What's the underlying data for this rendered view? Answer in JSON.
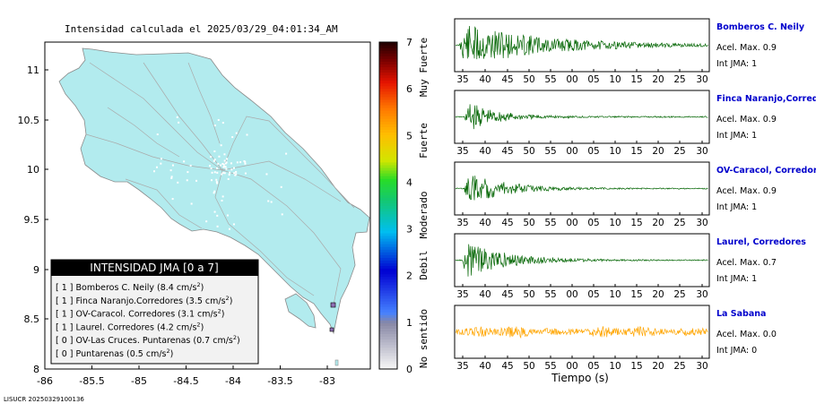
{
  "title": "Intensidad calculada el 2025/03/29_04:01:34_AM",
  "footer_id": "LISUCR 20250329100136",
  "map": {
    "x_ticks": [
      "-86",
      "-85.5",
      "-85",
      "-84.5",
      "-84",
      "-83.5",
      "-83"
    ],
    "y_ticks": [
      "11",
      "10.5",
      "10",
      "9.5",
      "9",
      "8.5",
      "8"
    ],
    "land_color": "#b2ebee",
    "road_color": "#aaaaaa",
    "marker": "square"
  },
  "colorbar": {
    "ticks": [
      "7",
      "6",
      "5",
      "4",
      "3",
      "2",
      "1",
      "0"
    ],
    "categories": [
      "Muy Fuerte",
      "Fuerte",
      "Moderado",
      "Debil",
      "No sentido"
    ]
  },
  "legend": {
    "title": "INTENSIDAD JMA [0 a 7]",
    "items": [
      {
        "jma": "[ 1 ]",
        "text": "Bomberos C. Neily (8.4 cm/s",
        "sup": "2",
        "close": ")"
      },
      {
        "jma": "[ 1 ]",
        "text": "Finca Naranjo.Corredores (3.5 cm/s",
        "sup": "2",
        "close": ")"
      },
      {
        "jma": "[ 1 ]",
        "text": "OV-Caracol. Corredores (3.1 cm/s",
        "sup": "2",
        "close": ")"
      },
      {
        "jma": "[ 1 ]",
        "text": "Laurel. Corredores (4.2 cm/s",
        "sup": "2",
        "close": ")"
      },
      {
        "jma": "[ 0 ]",
        "text": "OV-Las Cruces. Puntarenas (0.7 cm/s",
        "sup": "2",
        "close": ")"
      },
      {
        "jma": "[ 0 ]",
        "text": "Puntarenas (0.5 cm/s",
        "sup": "2",
        "close": ")"
      }
    ]
  },
  "chart_data": {
    "type": "line",
    "xlabel": "Tiempo (s)",
    "x_tick_labels": [
      "35",
      "40",
      "45",
      "50",
      "55",
      "00",
      "05",
      "10",
      "15",
      "20",
      "25",
      "30"
    ],
    "series": [
      {
        "name": "Bomberos C. Neily",
        "accel": "Acel. Max. 0.9",
        "jma": "Int JMA: 1",
        "color": "#006400",
        "name_color": "#0000cc",
        "onset": 0.2,
        "peak": 0.95,
        "decay": 3.2,
        "noise": 0.02
      },
      {
        "name": "Finca Naranjo,Corredores",
        "accel": "Acel. Max. 0.9",
        "jma": "Int JMA: 1",
        "color": "#006400",
        "name_color": "#0000cc",
        "onset": 0.4,
        "peak": 0.7,
        "decay": 9,
        "noise": 0.03
      },
      {
        "name": "OV-Caracol, Corredores",
        "accel": "Acel. Max. 0.9",
        "jma": "Int JMA: 1",
        "color": "#006400",
        "name_color": "#0000cc",
        "onset": 0.4,
        "peak": 0.75,
        "decay": 7,
        "noise": 0.02
      },
      {
        "name": "Laurel, Corredores",
        "accel": "Acel. Max. 0.7",
        "jma": "Int JMA: 1",
        "color": "#006400",
        "name_color": "#0000cc",
        "onset": 0.3,
        "peak": 0.8,
        "decay": 6,
        "noise": 0.02
      },
      {
        "name": "La Sabana",
        "accel": "Acel. Max. 0.0",
        "jma": "Int JMA: 0",
        "color": "#ffa500",
        "name_color": "#0000cc",
        "onset": 0,
        "peak": 0.25,
        "decay": 0,
        "noise": 0.4
      }
    ]
  }
}
